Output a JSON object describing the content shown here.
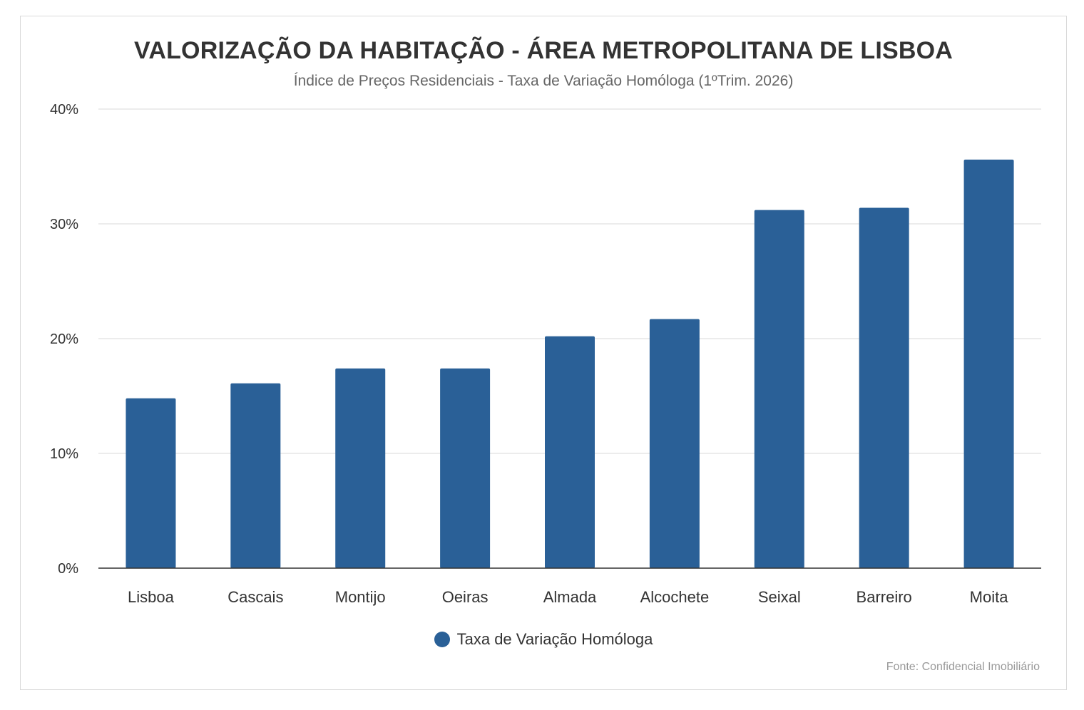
{
  "chart_data": {
    "type": "bar",
    "title": "VALORIZAÇÃO DA HABITAÇÃO - ÁREA METROPOLITANA DE LISBOA",
    "subtitle": "Índice de Preços Residenciais - Taxa de Variação Homóloga (1ºTrim. 2026)",
    "categories": [
      "Lisboa",
      "Cascais",
      "Montijo",
      "Oeiras",
      "Almada",
      "Alcochete",
      "Seixal",
      "Barreiro",
      "Moita"
    ],
    "series": [
      {
        "name": "Taxa de Variação Homóloga",
        "color": "#2a6097",
        "values": [
          14.8,
          16.1,
          17.4,
          17.4,
          20.2,
          21.7,
          31.2,
          31.4,
          35.6
        ]
      }
    ],
    "yticks": [
      "0%",
      "10%",
      "20%",
      "30%",
      "40%"
    ],
    "ylim": [
      0,
      40
    ],
    "grid": true,
    "legend_position": "bottom",
    "source": "Fonte: Confidencial Imobiliário"
  }
}
